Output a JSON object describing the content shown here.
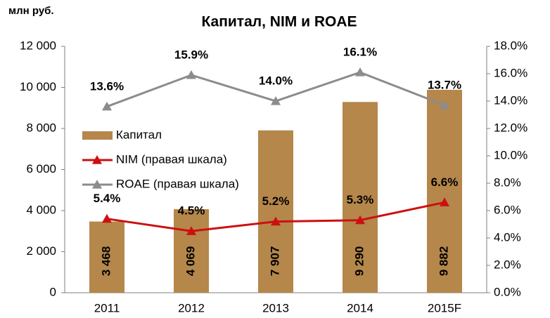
{
  "chart_data": {
    "type": "bar",
    "title": "Капитал, NIM и ROAE",
    "y_label": "млн руб.",
    "categories": [
      "2011",
      "2012",
      "2013",
      "2014",
      "2015F"
    ],
    "series": [
      {
        "name": "Капитал",
        "type": "bar",
        "color": "#b5874b",
        "values": [
          3468,
          4069,
          7907,
          9290,
          9882
        ],
        "value_labels": [
          "3 468",
          "4 069",
          "7 907",
          "9 290",
          "9 882"
        ]
      },
      {
        "name": "NIM (правая шкала)",
        "type": "line",
        "axis": "y2",
        "color": "#cc1010",
        "values": [
          5.4,
          4.5,
          5.2,
          5.3,
          6.6
        ],
        "value_labels": [
          "5.4%",
          "4.5%",
          "5.2%",
          "5.3%",
          "6.6%"
        ]
      },
      {
        "name": "ROAE (правая шкала)",
        "type": "line",
        "axis": "y2",
        "color": "#8c8c8c",
        "values": [
          13.6,
          15.9,
          14.0,
          16.1,
          13.7
        ],
        "value_labels": [
          "13.6%",
          "15.9%",
          "14.0%",
          "16.1%",
          "13.7%"
        ]
      }
    ],
    "ylim": [
      0,
      12000
    ],
    "yticks": [
      0,
      {
        "value": 2000,
        "label": "2 000"
      },
      {
        "value": 4000,
        "label": "4 000"
      },
      {
        "value": 6000,
        "label": "6 000"
      },
      {
        "value": 8000,
        "label": "8 000"
      },
      {
        "value": 10000,
        "label": "10 000"
      },
      {
        "value": 12000,
        "label": "12 000"
      }
    ],
    "y2lim": [
      0,
      18
    ],
    "y2ticks": [
      {
        "value": 0,
        "label": "0.0%"
      },
      {
        "value": 2,
        "label": "2.0%"
      },
      {
        "value": 4,
        "label": "4.0%"
      },
      {
        "value": 6,
        "label": "6.0%"
      },
      {
        "value": 8,
        "label": "8.0%"
      },
      {
        "value": 10,
        "label": "10.0%"
      },
      {
        "value": 12,
        "label": "12.0%"
      },
      {
        "value": 14,
        "label": "14.0%"
      },
      {
        "value": 16,
        "label": "16.0%"
      },
      {
        "value": 18,
        "label": "18.0%"
      }
    ],
    "grid": false,
    "legend": "left"
  }
}
